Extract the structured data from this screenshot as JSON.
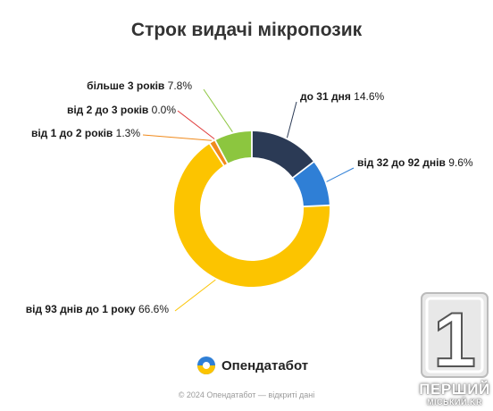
{
  "title": "Строк видачі мікропозик",
  "chart_data": {
    "type": "donut",
    "title": "Строк видачі мікропозик",
    "unit": "%",
    "slices": [
      {
        "label": "до 31 дня",
        "value": 14.6,
        "display": "14.6%",
        "color": "#2b3a55"
      },
      {
        "label": "від 32 до 92 днів",
        "value": 9.6,
        "display": "9.6%",
        "color": "#2f7fd6"
      },
      {
        "label": "від 93 днів до 1 року",
        "value": 66.6,
        "display": "66.6%",
        "color": "#fcc400"
      },
      {
        "label": "від 1 до 2 років",
        "value": 1.3,
        "display": "1.3%",
        "color": "#f08a1c"
      },
      {
        "label": "від 2 до 3 років",
        "value": 0.0,
        "display": "0.0%",
        "color": "#e03a3a"
      },
      {
        "label": "більше 3 років",
        "value": 7.8,
        "display": "7.8%",
        "color": "#8cc63f"
      }
    ]
  },
  "brand": {
    "name": "Опендатабот"
  },
  "footer": {
    "text": "© 2024 Опендатабот — відкриті дані"
  },
  "watermark": {
    "digit": "1",
    "line1": "ПЕРШИЙ",
    "line2": "МІСЬКИЙ.KR"
  }
}
